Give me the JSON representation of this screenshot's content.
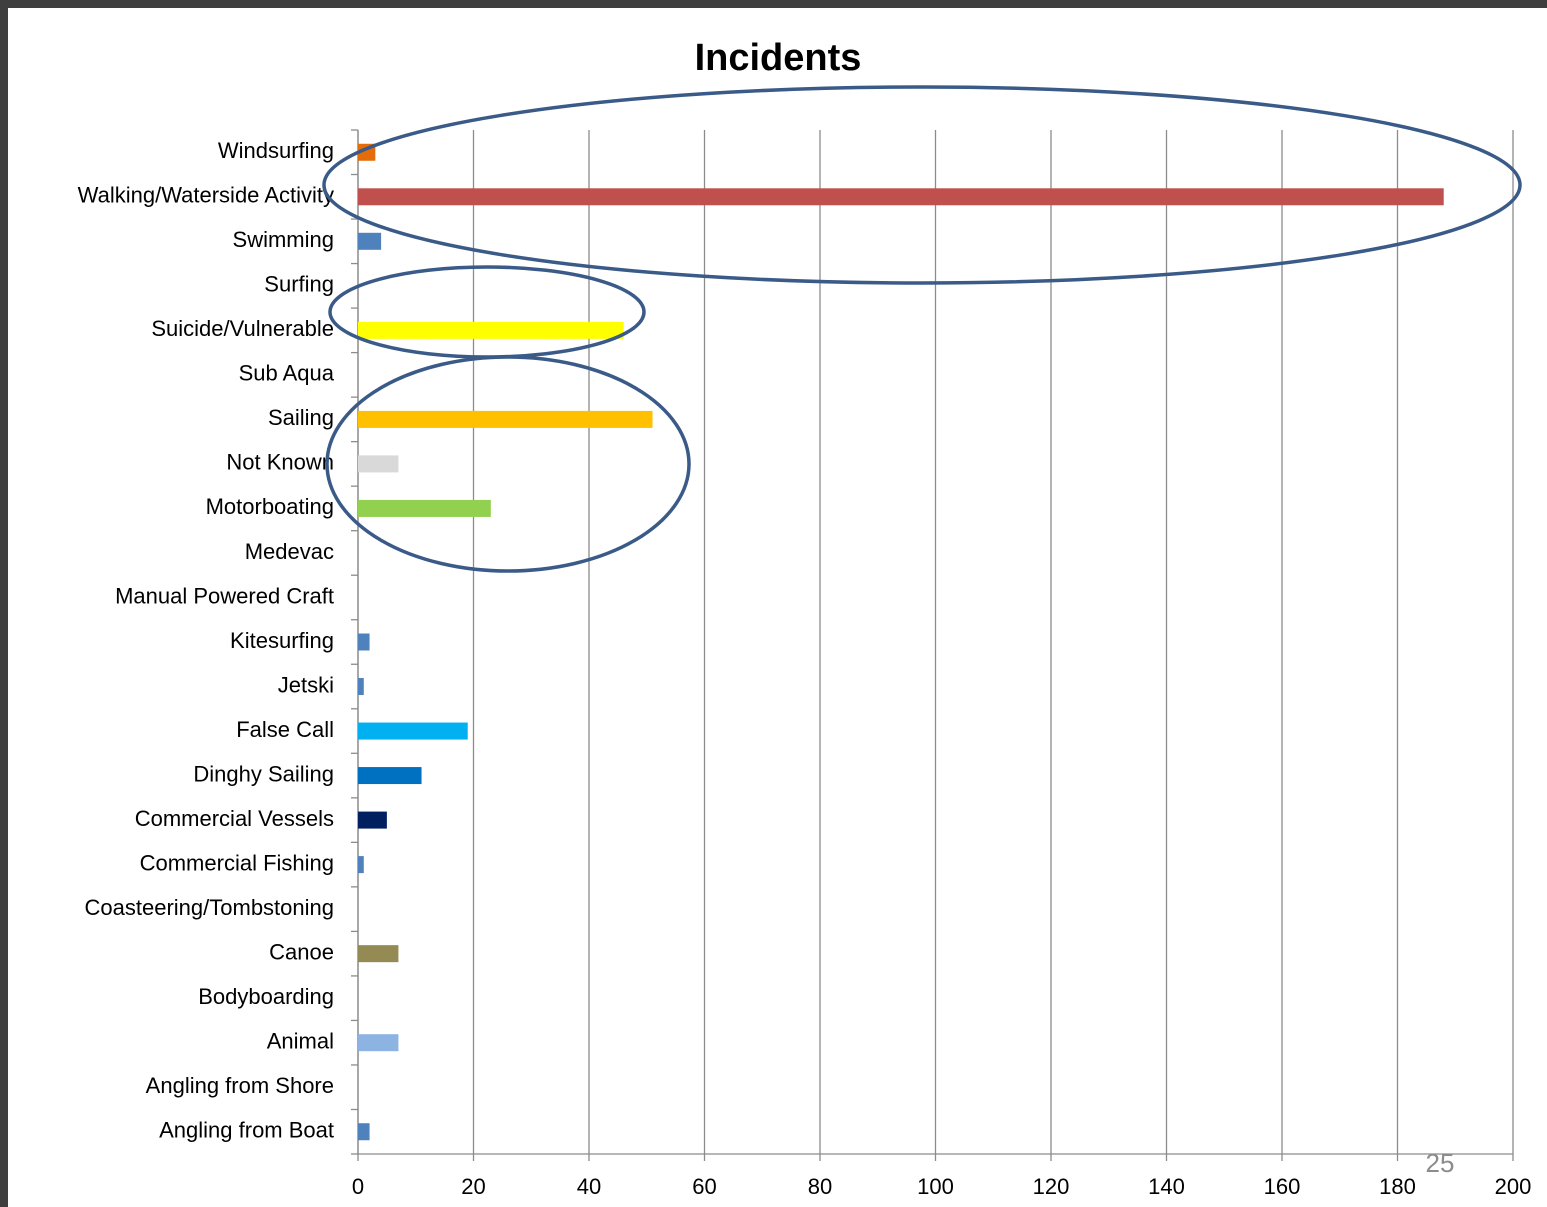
{
  "chart_data": {
    "type": "bar",
    "orientation": "horizontal",
    "title": "Incidents",
    "categories": [
      "Windsurfing",
      "Walking/Waterside Activity",
      "Swimming",
      "Surfing",
      "Suicide/Vulnerable",
      "Sub Aqua",
      "Sailing",
      "Not Known",
      "Motorboating",
      "Medevac",
      "Manual Powered Craft",
      "Kitesurfing",
      "Jetski",
      "False Call",
      "Dinghy Sailing",
      "Commercial Vessels",
      "Commercial Fishing",
      "Coasteering/Tombstoning",
      "Canoe",
      "Bodyboarding",
      "Animal",
      "Angling from Shore",
      "Angling from Boat"
    ],
    "values": [
      3,
      188,
      4,
      0,
      46,
      0,
      51,
      7,
      23,
      0,
      0,
      2,
      1,
      19,
      11,
      5,
      1,
      0,
      7,
      0,
      7,
      0,
      2
    ],
    "colors": [
      "#e46c0a",
      "#c0504d",
      "#4f81bd",
      "#4f81bd",
      "#ffff00",
      "#4f81bd",
      "#ffc000",
      "#d9d9d9",
      "#92d050",
      "#4f81bd",
      "#4f81bd",
      "#4f81bd",
      "#4f81bd",
      "#00b0f0",
      "#0070c0",
      "#002060",
      "#4f81bd",
      "#4f81bd",
      "#948a54",
      "#4f81bd",
      "#8db3e2",
      "#4f81bd",
      "#4f81bd"
    ],
    "xlim": [
      0,
      200
    ],
    "xticks": [
      0,
      20,
      40,
      60,
      80,
      100,
      120,
      140,
      160,
      180,
      200
    ],
    "grid": true
  },
  "page_number": "25"
}
